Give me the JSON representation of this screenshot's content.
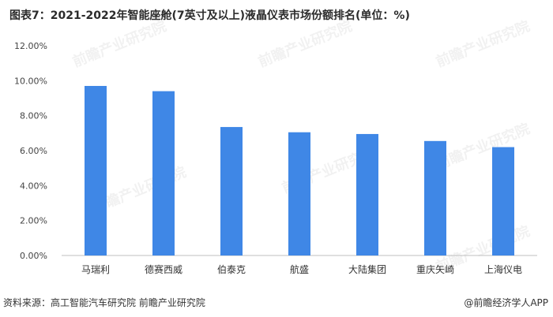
{
  "title": "图表7：2021-2022年智能座舱(7英寸及以上)液晶仪表市场份额排名(单位：%)",
  "source": "资料来源：高工智能汽车研究院 前瞻产业研究院",
  "brand": "@前瞻经济学人APP",
  "watermark": "前瞻产业研究院",
  "colors": {
    "bar": "#3f87e6",
    "axis": "#bfbfbf"
  },
  "chart_data": {
    "type": "bar",
    "categories": [
      "马瑞利",
      "德赛西威",
      "伯泰克",
      "航盛",
      "大陆集团",
      "重庆矢崎",
      "上海仪电"
    ],
    "values": [
      9.7,
      9.4,
      7.35,
      7.05,
      6.95,
      6.55,
      6.2
    ],
    "ylim": [
      0,
      12
    ],
    "yticks": [
      "0.00%",
      "2.00%",
      "4.00%",
      "6.00%",
      "8.00%",
      "10.00%",
      "12.00%"
    ],
    "ytick_values": [
      0,
      2,
      4,
      6,
      8,
      10,
      12
    ],
    "grid": false,
    "legend": "none"
  }
}
